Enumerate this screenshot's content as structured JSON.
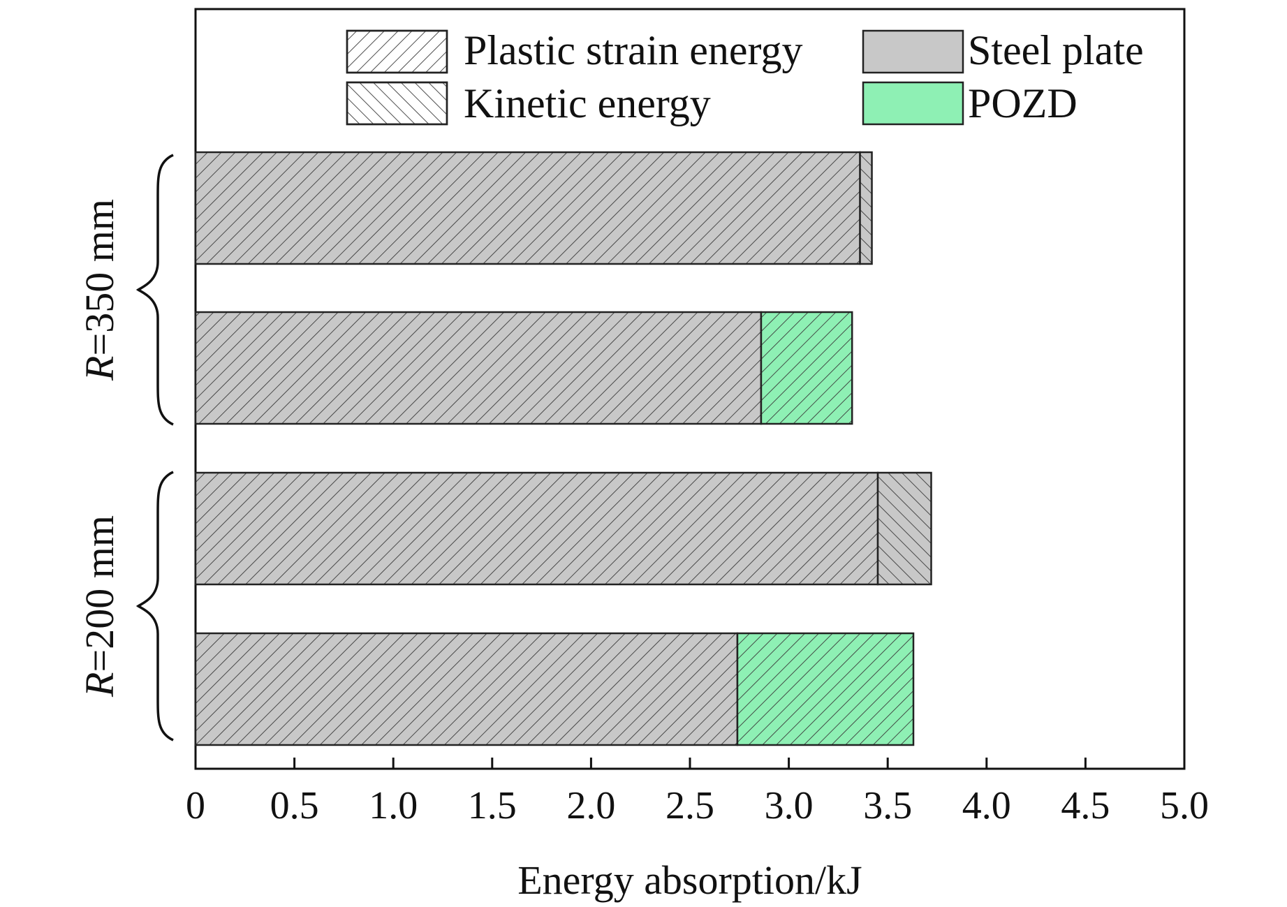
{
  "chart_data": {
    "type": "bar",
    "orientation": "horizontal",
    "stacked": true,
    "xlabel": "Energy absorption/kJ",
    "xlim": [
      0,
      5.0
    ],
    "xticks": [
      0,
      0.5,
      1.0,
      1.5,
      2.0,
      2.5,
      3.0,
      3.5,
      4.0,
      4.5,
      5.0
    ],
    "xtick_labels": [
      "0",
      "0.5",
      "1.0",
      "1.5",
      "2.0",
      "2.5",
      "3.0",
      "3.5",
      "4.0",
      "4.5",
      "5.0"
    ],
    "legend": [
      {
        "label": "Plastic strain energy",
        "swatch": "hatch-plastic"
      },
      {
        "label": "Steel plate",
        "swatch": "fill-steel"
      },
      {
        "label": "Kinetic energy",
        "swatch": "hatch-kinetic"
      },
      {
        "label": "POZD",
        "swatch": "fill-pozd"
      }
    ],
    "legend_position": "top-right",
    "groups": [
      {
        "prefix": "R",
        "suffix": "=350 mm",
        "bars": [
          0,
          1
        ]
      },
      {
        "prefix": "R",
        "suffix": "=200 mm",
        "bars": [
          2,
          3
        ]
      }
    ],
    "bars": [
      {
        "name": "R=350 mm kinetic",
        "segments": [
          {
            "component": "Steel plate",
            "energy": "Plastic strain energy",
            "value": 3.36
          },
          {
            "component": "Steel plate",
            "energy": "Kinetic energy",
            "value": 0.06
          }
        ]
      },
      {
        "name": "R=350 mm plastic",
        "segments": [
          {
            "component": "Steel plate",
            "energy": "Plastic strain energy",
            "value": 2.86
          },
          {
            "component": "POZD",
            "energy": "Plastic strain energy",
            "value": 0.46
          }
        ]
      },
      {
        "name": "R=200 mm kinetic",
        "segments": [
          {
            "component": "Steel plate",
            "energy": "Plastic strain energy",
            "value": 3.45
          },
          {
            "component": "Steel plate",
            "energy": "Kinetic energy",
            "value": 0.27
          }
        ]
      },
      {
        "name": "R=200 mm plastic",
        "segments": [
          {
            "component": "Steel plate",
            "energy": "Plastic strain energy",
            "value": 2.74
          },
          {
            "component": "POZD",
            "energy": "Plastic strain energy",
            "value": 0.89
          }
        ]
      }
    ],
    "colors": {
      "steel": "#c8c8c8",
      "pozd": "#8ef0b4",
      "hatch": "#3a3a3a",
      "axis": "#111111"
    }
  }
}
